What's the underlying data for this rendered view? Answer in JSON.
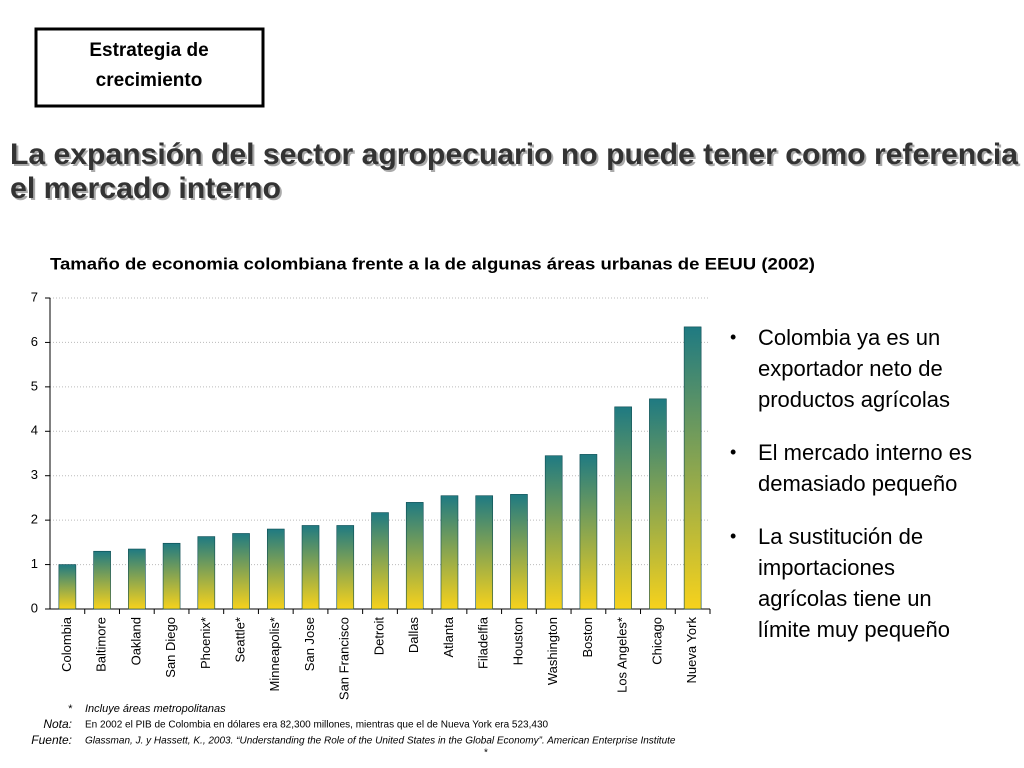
{
  "header": {
    "box": [
      "Estrategia de",
      "crecimiento"
    ],
    "title": [
      "La expansión del sector agropecuario no puede tener como referencia",
      "el mercado interno"
    ]
  },
  "chart_data": {
    "type": "bar",
    "title": "Tamaño de economia colombiana frente a la de algunas áreas urbanas de EEUU (2002)",
    "categories": [
      "Colombia",
      "Baltimore",
      "Oakland",
      "San Diego",
      "Phoenix*",
      "Seattle*",
      "Minneapolis*",
      "San Jose",
      "San Francisco",
      "Detroit",
      "Dallas",
      "Atlanta",
      "Filadelfia",
      "Houston",
      "Washington",
      "Boston",
      "Los Angeles*",
      "Chicago",
      "Nueva York"
    ],
    "values": [
      1.0,
      1.3,
      1.35,
      1.48,
      1.63,
      1.7,
      1.8,
      1.88,
      1.88,
      2.17,
      2.4,
      2.55,
      2.55,
      2.58,
      3.45,
      3.48,
      4.55,
      4.73,
      6.35
    ],
    "gradient": [
      "#1f7a82",
      "#f7d21c"
    ],
    "ylim": [
      0,
      7
    ],
    "yticks": [
      0,
      1,
      2,
      3,
      4,
      5,
      6,
      7
    ],
    "grid": true
  },
  "bullets": [
    [
      "Colombia ya es un",
      "exportador neto de",
      "productos agrícolas"
    ],
    [
      "El mercado interno es",
      "demasiado pequeño"
    ],
    [
      "La sustitución de",
      "importaciones",
      "agrícolas tiene un",
      "límite muy pequeño"
    ]
  ],
  "notes": [
    {
      "key": "*",
      "text": "Incluye áreas metropolitanas"
    },
    {
      "key": "Nota:",
      "text": "En 2002 el PIB de Colombia en dólares era 82,300 millones, mientras que el de Nueva York era 523,430"
    },
    {
      "key": "Fuente:",
      "text": "Glassman, J. y Hassett, K., 2003. “Understanding the Role of the United States in the Global Economy”. American Enterprise Institute"
    }
  ],
  "mark": "*"
}
